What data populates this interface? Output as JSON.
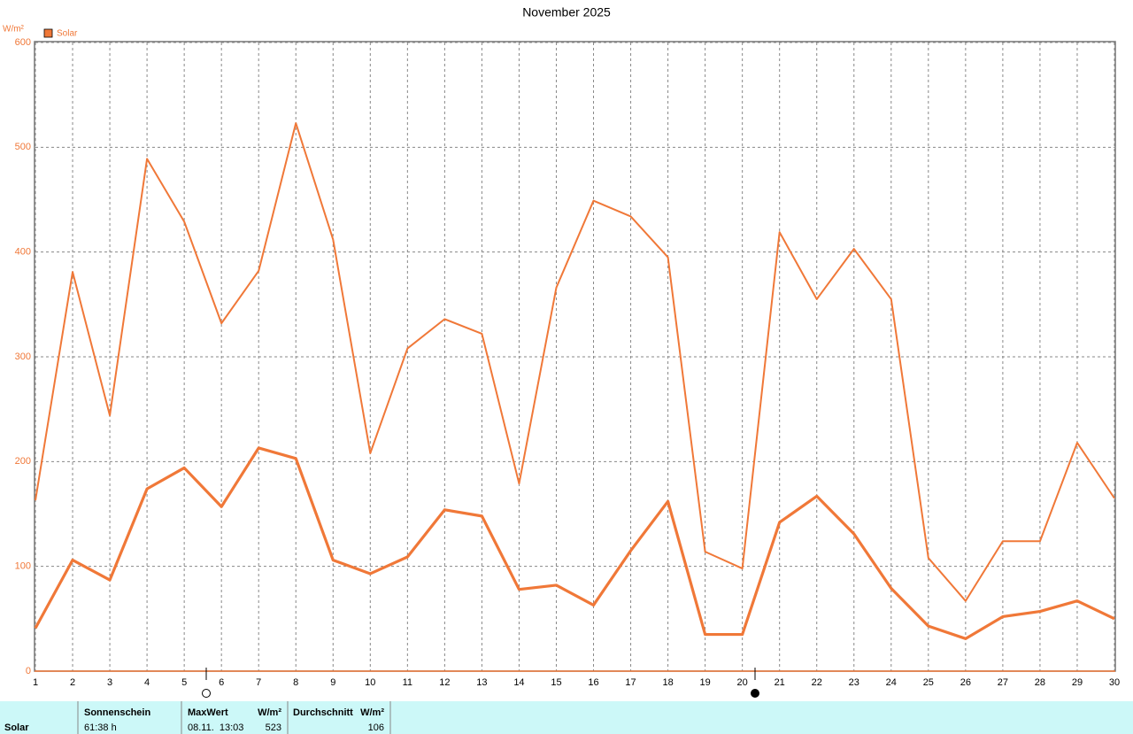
{
  "chart_data": {
    "type": "line",
    "title": "November 2025",
    "y_label": "W/m²",
    "x": [
      1,
      2,
      3,
      4,
      5,
      6,
      7,
      8,
      9,
      10,
      11,
      12,
      13,
      14,
      15,
      16,
      17,
      18,
      19,
      20,
      21,
      22,
      23,
      24,
      25,
      26,
      27,
      28,
      29,
      30
    ],
    "xlim": [
      1,
      30
    ],
    "xticks": [
      1,
      2,
      3,
      4,
      5,
      6,
      7,
      8,
      9,
      10,
      11,
      12,
      13,
      14,
      15,
      16,
      17,
      18,
      19,
      20,
      21,
      22,
      23,
      24,
      25,
      26,
      27,
      28,
      29,
      30
    ],
    "ylim": [
      0,
      600
    ],
    "yticks": [
      0,
      100,
      200,
      300,
      400,
      500,
      600
    ],
    "grid": true,
    "legend": "top-left",
    "series": [
      {
        "name": "Solar",
        "color": "#f07838",
        "values": [
          163,
          381,
          244,
          489,
          429,
          332,
          382,
          523,
          412,
          208,
          308,
          336,
          322,
          179,
          366,
          449,
          434,
          395,
          114,
          98,
          419,
          355,
          403,
          355,
          108,
          67,
          124,
          124,
          218,
          165
        ]
      },
      {
        "color": "#f07838",
        "values": [
          41,
          106,
          87,
          174,
          194,
          157,
          213,
          203,
          106,
          93,
          109,
          154,
          148,
          78,
          82,
          63,
          115,
          162,
          35,
          35,
          142,
          167,
          131,
          79,
          43,
          31,
          52,
          57,
          67,
          50
        ]
      }
    ]
  },
  "table": {
    "row_label": "Solar",
    "sunshine": {
      "header": "Sonnenschein",
      "value": "61:38 h"
    },
    "max": {
      "header": "MaxWert",
      "unit": "W/m²",
      "date": "08.11.  13:03",
      "value": 523
    },
    "average": {
      "header": "Durchschnitt",
      "unit": "W/m²",
      "value": 106
    }
  }
}
